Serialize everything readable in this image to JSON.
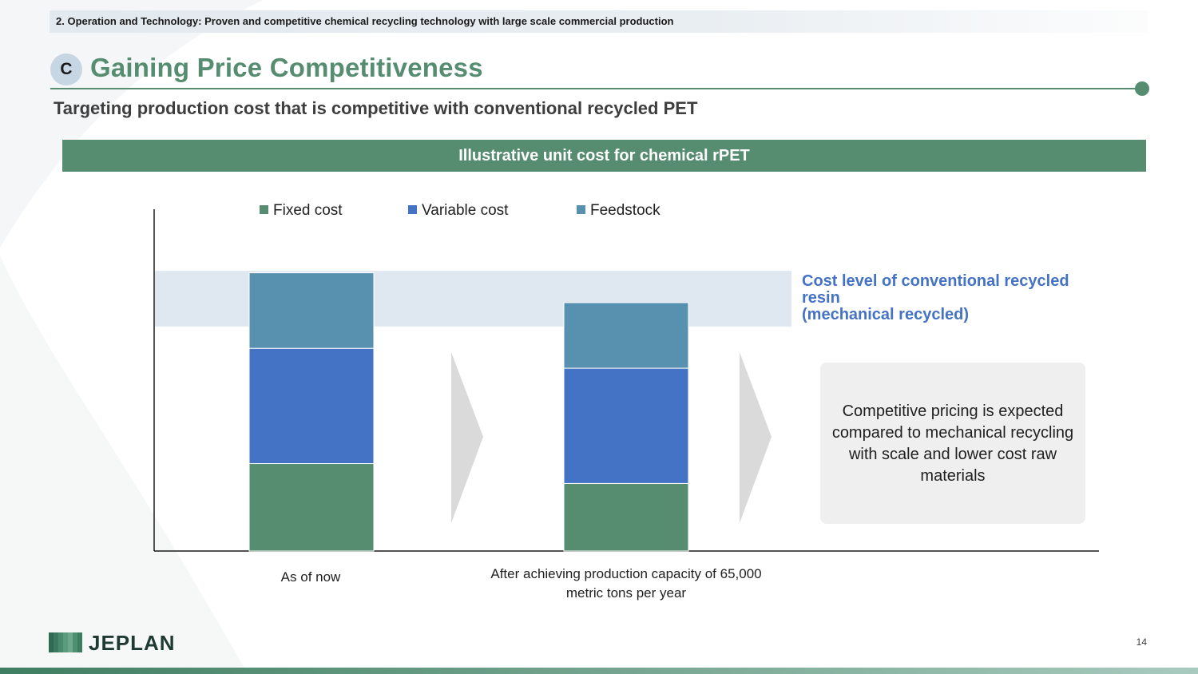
{
  "header": {
    "section": "2. Operation and Technology: Proven and competitive chemical recycling technology with large scale commercial production",
    "badge": "C",
    "title": "Gaining Price Competitiveness",
    "subtitle": "Targeting production cost that is competitive with conventional recycled PET"
  },
  "banner": "Illustrative unit cost for chemical rPET",
  "colors": {
    "brand_green": "#568d71",
    "fixed": "#568d71",
    "variable": "#4472c4",
    "feedstock": "#5891b0",
    "band": "#dfe8f0",
    "band_text": "#4472c4"
  },
  "chart_data": {
    "type": "bar",
    "stacked": true,
    "categories": [
      "As of now",
      "After achieving production capacity of 65,000 metric tons per year"
    ],
    "series": [
      {
        "name": "Fixed cost",
        "values": [
          22,
          17
        ]
      },
      {
        "name": "Variable cost",
        "values": [
          29,
          29
        ]
      },
      {
        "name": "Feedstock",
        "values": [
          19,
          16.5
        ]
      }
    ],
    "ylim": [
      0,
      86
    ],
    "reference_band": {
      "range": [
        56.5,
        70.5
      ],
      "label": [
        "Cost level of conventional recycled",
        "resin",
        "(mechanical recycled)"
      ]
    },
    "legend": "top",
    "grid": false,
    "y_axis_labels": false
  },
  "note": "Competitive pricing is expected compared to mechanical recycling with scale and lower cost raw materials",
  "footer": {
    "logo": "JEPLAN",
    "page": "14"
  }
}
